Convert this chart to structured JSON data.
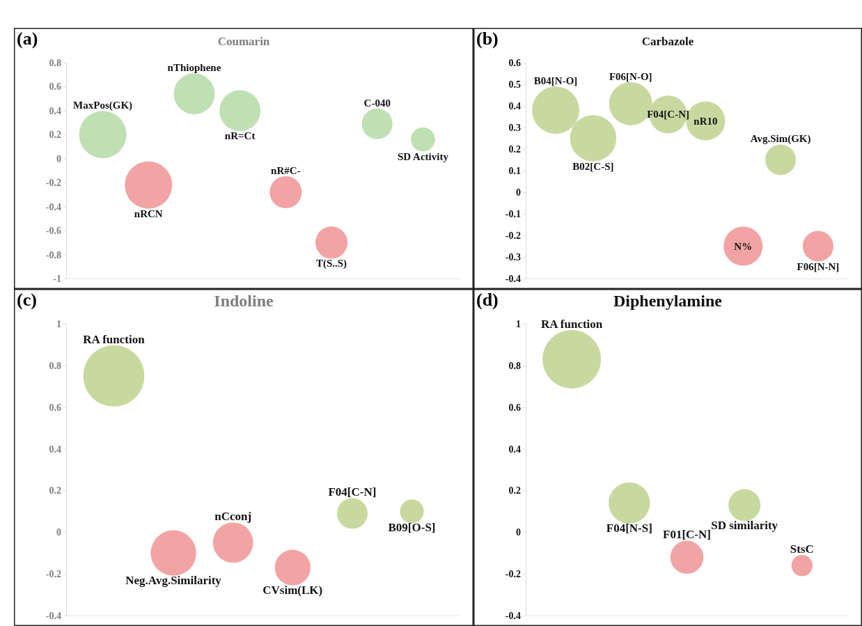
{
  "chart_data": [
    {
      "type": "bubble",
      "title": "Coumarin",
      "annotations": [
        "(a)"
      ],
      "categories": [
        null,
        null,
        null,
        null,
        null,
        null,
        null,
        null
      ],
      "ylim": [
        -1,
        0.8
      ],
      "yticks": [
        -1,
        -0.8,
        -0.6,
        -0.4,
        -0.2,
        0,
        0.2,
        0.4,
        0.6,
        0.8
      ],
      "tick_labels": "y",
      "series": [
        {
          "name": "MaxPos(GK)",
          "color": "#bfe0b3",
          "values": [
            0.2,
            null,
            null,
            null,
            null,
            null,
            null,
            null
          ],
          "sizes": [
            1,
            null,
            null,
            null,
            null,
            null,
            null,
            null
          ]
        },
        {
          "name": "nRCN",
          "color": "#f2a3a3",
          "values": [
            null,
            -0.22,
            null,
            null,
            null,
            null,
            null,
            null
          ],
          "sizes": [
            null,
            1,
            null,
            null,
            null,
            null,
            null,
            null
          ]
        },
        {
          "name": "nThiophene",
          "color": "#bfe0b3",
          "values": [
            null,
            null,
            0.54,
            null,
            null,
            null,
            null,
            null
          ],
          "sizes": [
            null,
            null,
            0.75,
            null,
            null,
            null,
            null,
            null
          ]
        },
        {
          "name": "nR=Ct",
          "color": "#bfe0b3",
          "values": [
            null,
            null,
            null,
            0.4,
            null,
            null,
            null,
            null
          ],
          "sizes": [
            null,
            null,
            null,
            0.75,
            null,
            null,
            null,
            null
          ]
        },
        {
          "name": "nR#C-",
          "color": "#f2a3a3",
          "values": [
            null,
            null,
            null,
            null,
            -0.28,
            null,
            null,
            null
          ],
          "sizes": [
            null,
            null,
            null,
            null,
            0.46,
            null,
            null,
            null
          ]
        },
        {
          "name": "T(S..S)",
          "color": "#f2a3a3",
          "values": [
            null,
            null,
            null,
            null,
            null,
            -0.7,
            null,
            null
          ],
          "sizes": [
            null,
            null,
            null,
            null,
            null,
            0.46,
            null,
            null
          ]
        },
        {
          "name": "C-040",
          "color": "#bfe0b3",
          "values": [
            null,
            null,
            null,
            null,
            null,
            null,
            0.29,
            null
          ],
          "sizes": [
            null,
            null,
            null,
            null,
            null,
            null,
            0.42,
            null
          ]
        },
        {
          "name": "SD Activity",
          "color": "#bfe0b3",
          "values": [
            null,
            null,
            null,
            null,
            null,
            null,
            null,
            0.16
          ],
          "sizes": [
            null,
            null,
            null,
            null,
            null,
            null,
            null,
            0.26
          ]
        }
      ]
    },
    {
      "type": "bubble",
      "title": "Carbazole",
      "annotations": [
        "(b)"
      ],
      "categories": [
        null,
        null,
        null,
        null,
        null,
        null,
        null,
        null
      ],
      "ylim": [
        -0.4,
        0.6
      ],
      "yticks": [
        -0.4,
        -0.3,
        -0.2,
        -0.1,
        0,
        0.1,
        0.2,
        0.3,
        0.4,
        0.5,
        0.6
      ],
      "tick_labels": "y",
      "series": [
        {
          "name": "B04[N-O]",
          "color": "#c8d9a0",
          "values": [
            0.38,
            null,
            null,
            null,
            null,
            null,
            null,
            null
          ],
          "sizes": [
            1,
            null,
            null,
            null,
            null,
            null,
            null,
            null
          ]
        },
        {
          "name": "B02[C-S]",
          "color": "#c8d9a0",
          "values": [
            null,
            0.25,
            null,
            null,
            null,
            null,
            null,
            null
          ],
          "sizes": [
            null,
            0.96,
            null,
            null,
            null,
            null,
            null,
            null
          ]
        },
        {
          "name": "F06[N-O]",
          "color": "#c8d9a0",
          "values": [
            null,
            null,
            0.41,
            null,
            null,
            null,
            null,
            null
          ],
          "sizes": [
            null,
            null,
            0.83,
            null,
            null,
            null,
            null,
            null
          ]
        },
        {
          "name": "F04[C-N]",
          "color": "#c8d9a0",
          "values": [
            null,
            null,
            null,
            0.36,
            null,
            null,
            null,
            null
          ],
          "sizes": [
            null,
            null,
            null,
            0.64,
            null,
            null,
            null,
            null
          ]
        },
        {
          "name": "nR10",
          "color": "#c8d9a0",
          "values": [
            null,
            null,
            null,
            null,
            0.33,
            null,
            null,
            null
          ],
          "sizes": [
            null,
            null,
            null,
            null,
            0.68,
            null,
            null,
            null
          ]
        },
        {
          "name": "N%",
          "color": "#f2a3a3",
          "values": [
            null,
            null,
            null,
            null,
            null,
            -0.25,
            null,
            null
          ],
          "sizes": [
            null,
            null,
            null,
            null,
            null,
            0.68,
            null,
            null
          ]
        },
        {
          "name": "Avg.Sim(GK)",
          "color": "#c8d9a0",
          "values": [
            null,
            null,
            null,
            null,
            null,
            null,
            0.15,
            null
          ],
          "sizes": [
            null,
            null,
            null,
            null,
            null,
            null,
            0.42,
            null
          ]
        },
        {
          "name": "F06[N-N]",
          "color": "#f2a3a3",
          "values": [
            null,
            null,
            null,
            null,
            null,
            null,
            null,
            -0.25
          ],
          "sizes": [
            null,
            null,
            null,
            null,
            null,
            null,
            null,
            0.42
          ]
        }
      ]
    },
    {
      "type": "bubble",
      "title": "Indoline",
      "annotations": [
        "(c)"
      ],
      "categories": [
        null,
        null,
        null,
        null,
        null,
        null
      ],
      "ylim": [
        -0.4,
        1
      ],
      "yticks": [
        -0.4,
        -0.2,
        0,
        0.2,
        0.4,
        0.6,
        0.8,
        1
      ],
      "tick_labels": "y",
      "series": [
        {
          "name": "RA function",
          "color": "#c8d9a0",
          "values": [
            0.75,
            null,
            null,
            null,
            null,
            null
          ],
          "sizes": [
            1,
            null,
            null,
            null,
            null,
            null
          ]
        },
        {
          "name": "Neg.Avg.Similarity",
          "color": "#f2a3a3",
          "values": [
            null,
            -0.1,
            null,
            null,
            null,
            null
          ],
          "sizes": [
            null,
            0.55,
            null,
            null,
            null,
            null
          ]
        },
        {
          "name": "nCconj",
          "color": "#f2a3a3",
          "values": [
            null,
            null,
            -0.05,
            null,
            null,
            null
          ],
          "sizes": [
            null,
            null,
            0.43,
            null,
            null,
            null
          ]
        },
        {
          "name": "CVsim(LK)",
          "color": "#f2a3a3",
          "values": [
            null,
            null,
            null,
            -0.17,
            null,
            null
          ],
          "sizes": [
            null,
            null,
            null,
            0.34,
            null,
            null
          ]
        },
        {
          "name": "F04[C-N]",
          "color": "#c8d9a0",
          "values": [
            null,
            null,
            null,
            null,
            0.09,
            null
          ],
          "sizes": [
            null,
            null,
            null,
            null,
            0.25,
            null
          ]
        },
        {
          "name": "B09[O-S]",
          "color": "#c8d9a0",
          "values": [
            null,
            null,
            null,
            null,
            null,
            0.1
          ],
          "sizes": [
            null,
            null,
            null,
            null,
            null,
            0.15
          ]
        }
      ]
    },
    {
      "type": "bubble",
      "title": "Diphenylamine",
      "annotations": [
        "(d)"
      ],
      "categories": [
        null,
        null,
        null,
        null,
        null
      ],
      "ylim": [
        -0.4,
        1
      ],
      "yticks": [
        -0.4,
        -0.2,
        0,
        0.2,
        0.4,
        0.6,
        0.8,
        1
      ],
      "tick_labels": "y",
      "series": [
        {
          "name": "RA function",
          "color": "#c8d9a0",
          "values": [
            0.83,
            null,
            null,
            null,
            null
          ],
          "sizes": [
            1,
            null,
            null,
            null,
            null
          ]
        },
        {
          "name": "F04[N-S]",
          "color": "#c8d9a0",
          "values": [
            null,
            0.14,
            null,
            null,
            null
          ],
          "sizes": [
            null,
            0.5,
            null,
            null,
            null
          ]
        },
        {
          "name": "F01[C-N]",
          "color": "#f2a3a3",
          "values": [
            null,
            null,
            -0.12,
            null,
            null
          ],
          "sizes": [
            null,
            null,
            0.32,
            null,
            null
          ]
        },
        {
          "name": "SD similarity",
          "color": "#c8d9a0",
          "values": [
            null,
            null,
            null,
            0.13,
            null
          ],
          "sizes": [
            null,
            null,
            null,
            0.3,
            null
          ]
        },
        {
          "name": "StsC",
          "color": "#f2a3a3",
          "values": [
            null,
            null,
            null,
            null,
            -0.16
          ],
          "sizes": [
            null,
            null,
            null,
            null,
            0.13
          ]
        }
      ]
    }
  ]
}
